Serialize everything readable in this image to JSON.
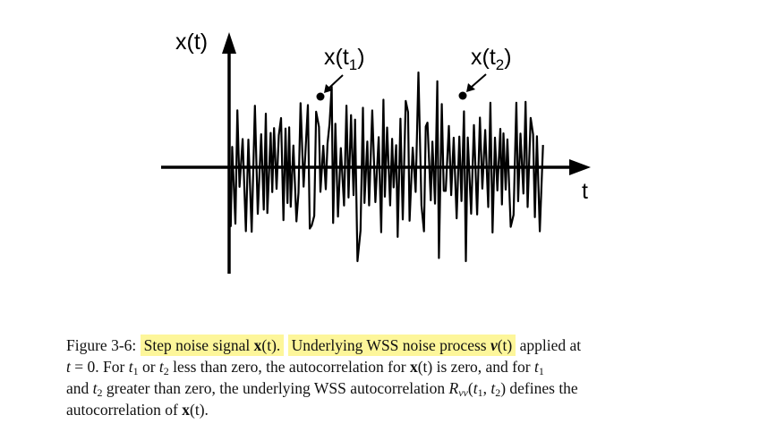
{
  "figure": {
    "y_axis_label": "x(t)",
    "x_axis_label": "t",
    "point1_label_base": "x(t",
    "point1_label_sub": "1",
    "point1_label_close": ")",
    "point2_label_base": "x(t",
    "point2_label_sub": "2",
    "point2_label_close": ")"
  },
  "caption": {
    "fig_label": "Figure 3-6:",
    "step_noise_text": "Step noise signal ",
    "x_bold": "x",
    "t_paren": "(t).",
    "underlying_text": "Underlying WSS noise process ",
    "nu_bold": "ν",
    "t_paren2": "(t)",
    "applied_text": " applied at",
    "t_eq": "t",
    "eq_zero": " = 0.  For ",
    "t1": "t",
    "sub1": "1",
    "or_text": " or ",
    "t2": "t",
    "sub2": "2",
    "less_text": " less than zero, the autocorrelation for ",
    "x_bold2": "x",
    "t_paren3": "(t)",
    "is_zero_text": " is zero, and for ",
    "t1b": "t",
    "sub1b": "1",
    "and_text": "and ",
    "t2b": "t",
    "sub2b": "2",
    "greater_text": " greater than zero, the underlying WSS autocorrelation ",
    "R": "R",
    "R_sub": "νν",
    "R_args_open": "(",
    "R_t1": "t",
    "R_t1_sub": "1",
    "R_comma": ", ",
    "R_t2": "t",
    "R_t2_sub": "2",
    "R_args_close": ")",
    "defines_text": " defines the",
    "autocorr_text": "autocorrelation of ",
    "x_bold3": "x",
    "t_paren4": "(t)",
    "period": "."
  },
  "colors": {
    "highlight": "#fdf69a",
    "ink": "#000000"
  }
}
